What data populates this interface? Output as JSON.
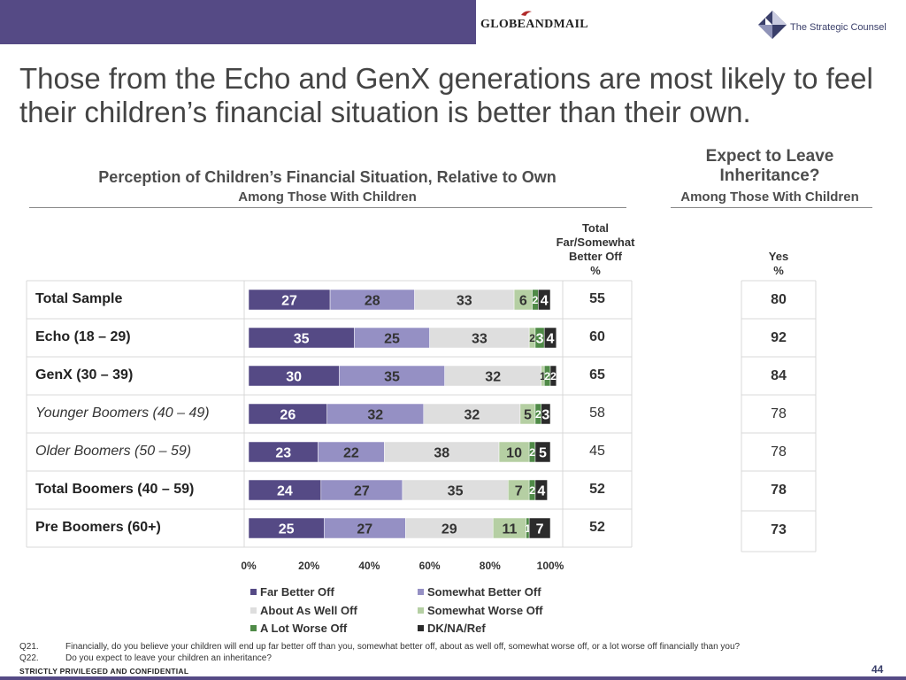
{
  "header": {
    "brand_left": "GLOBEANDMAIL",
    "brand_right": "The Strategic Counsel",
    "band_color": "#554a85"
  },
  "title": "Those from the Echo and GenX generations are most likely to feel\ntheir children’s financial situation is better than their own.",
  "left_panel": {
    "title": "Perception of Children’s Financial Situation, Relative to Own",
    "subtitle": "Among Those With Children",
    "total_column_header": "Total\nFar/Somewhat\nBetter Off\n%"
  },
  "right_panel": {
    "title": "Expect to Leave\nInheritance?",
    "subtitle": "Among Those With Children",
    "column_header": "Yes\n%"
  },
  "rows": [
    {
      "label": "Total Sample",
      "style": "bold",
      "total": "55",
      "total_bold": true,
      "yes": "80",
      "yes_bold": true
    },
    {
      "label": "Echo (18 – 29)",
      "style": "bold",
      "total": "60",
      "total_bold": true,
      "yes": "92",
      "yes_bold": true
    },
    {
      "label": "GenX (30 – 39)",
      "style": "bold",
      "total": "65",
      "total_bold": true,
      "yes": "84",
      "yes_bold": true
    },
    {
      "label": "Younger Boomers (40 – 49)",
      "style": "italic",
      "total": "58",
      "total_bold": false,
      "yes": "78",
      "yes_bold": false
    },
    {
      "label": "Older Boomers (50 – 59)",
      "style": "italic",
      "total": "45",
      "total_bold": false,
      "yes": "78",
      "yes_bold": false
    },
    {
      "label": "Total Boomers (40 – 59)",
      "style": "bold",
      "total": "52",
      "total_bold": true,
      "yes": "78",
      "yes_bold": true
    },
    {
      "label": "Pre Boomers (60+)",
      "style": "bold",
      "total": "52",
      "total_bold": true,
      "yes": "73",
      "yes_bold": true
    }
  ],
  "chart_data": {
    "type": "bar",
    "orientation": "horizontal",
    "stacked": true,
    "title": "Perception of Children’s Financial Situation, Relative to Own",
    "subtitle": "Among Those With Children",
    "categories": [
      "Total Sample",
      "Echo (18 – 29)",
      "GenX (30 – 39)",
      "Younger Boomers (40 – 49)",
      "Older Boomers (50 – 59)",
      "Total Boomers (40 – 59)",
      "Pre Boomers (60+)"
    ],
    "series": [
      {
        "name": "Far Better Off",
        "color": "#554a85",
        "values": [
          27,
          35,
          30,
          26,
          23,
          24,
          25
        ]
      },
      {
        "name": "Somewhat Better Off",
        "color": "#9590c4",
        "values": [
          28,
          25,
          35,
          32,
          22,
          27,
          27
        ]
      },
      {
        "name": "About As Well Off",
        "color": "#dedede",
        "values": [
          33,
          33,
          32,
          32,
          38,
          35,
          29
        ]
      },
      {
        "name": "Somewhat Worse Off",
        "color": "#b5cfa3",
        "values": [
          6,
          2,
          1,
          5,
          10,
          7,
          11
        ]
      },
      {
        "name": "A Lot Worse Off",
        "color": "#4f8a47",
        "values": [
          2,
          3,
          2,
          2,
          2,
          2,
          1
        ]
      },
      {
        "name": "DK/NA/Ref",
        "color": "#2b2b2b",
        "values": [
          4,
          4,
          2,
          3,
          5,
          4,
          7
        ]
      }
    ],
    "xlim": [
      0,
      100
    ],
    "xticks": [
      "0%",
      "20%",
      "40%",
      "60%",
      "80%",
      "100%"
    ],
    "xlabel": "",
    "ylabel": "",
    "legend_position": "bottom",
    "grid": false
  },
  "legend": [
    "Far Better Off",
    "Somewhat Better Off",
    "About As Well Off",
    "Somewhat Worse Off",
    "A Lot Worse Off",
    "DK/NA/Ref"
  ],
  "footnotes": [
    {
      "num": "Q21.",
      "text": "Financially, do you believe your children will end up far better off than you, somewhat better off, about as well off, somewhat worse off, or a lot worse off financially than you?"
    },
    {
      "num": "Q22.",
      "text": "Do you expect to leave your children an inheritance?"
    }
  ],
  "confidential": "STRICTLY PRIVILEGED AND CONFIDENTIAL",
  "page_number": "44"
}
